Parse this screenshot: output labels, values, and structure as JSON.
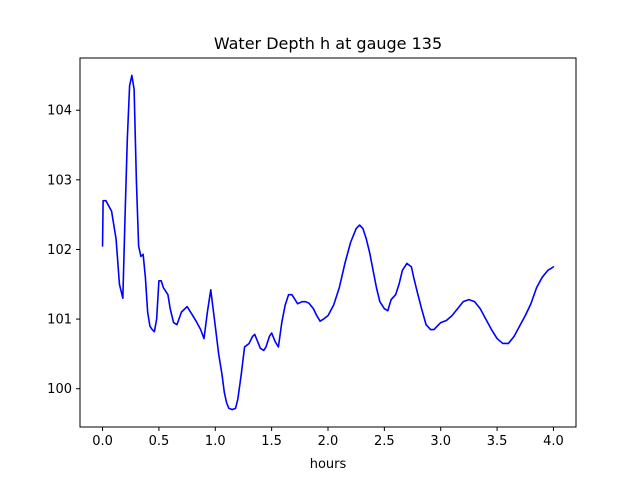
{
  "chart_data": {
    "type": "line",
    "title": "Water Depth h at gauge 135",
    "xlabel": "hours",
    "ylabel": "",
    "xlim": [
      -0.2,
      4.2
    ],
    "ylim": [
      99.45,
      104.75
    ],
    "xticks": [
      0.0,
      0.5,
      1.0,
      1.5,
      2.0,
      2.5,
      3.0,
      3.5,
      4.0
    ],
    "xtick_labels": [
      "0.0",
      "0.5",
      "1.0",
      "1.5",
      "2.0",
      "2.5",
      "3.0",
      "3.5",
      "4.0"
    ],
    "yticks": [
      100,
      101,
      102,
      103,
      104
    ],
    "ytick_labels": [
      "100",
      "101",
      "102",
      "103",
      "104"
    ],
    "grid": false,
    "series": [
      {
        "color": "#0000ff",
        "x": [
          0.0,
          0.005,
          0.03,
          0.08,
          0.12,
          0.15,
          0.18,
          0.2,
          0.22,
          0.24,
          0.26,
          0.28,
          0.3,
          0.32,
          0.34,
          0.36,
          0.38,
          0.4,
          0.42,
          0.44,
          0.46,
          0.48,
          0.5,
          0.52,
          0.54,
          0.56,
          0.58,
          0.6,
          0.63,
          0.66,
          0.7,
          0.75,
          0.8,
          0.83,
          0.87,
          0.9,
          0.93,
          0.96,
          1.0,
          1.03,
          1.06,
          1.08,
          1.1,
          1.12,
          1.15,
          1.18,
          1.2,
          1.23,
          1.26,
          1.3,
          1.33,
          1.35,
          1.37,
          1.4,
          1.43,
          1.45,
          1.48,
          1.5,
          1.53,
          1.56,
          1.59,
          1.62,
          1.65,
          1.68,
          1.7,
          1.73,
          1.77,
          1.8,
          1.83,
          1.87,
          1.9,
          1.93,
          1.96,
          2.0,
          2.05,
          2.1,
          2.15,
          2.2,
          2.25,
          2.28,
          2.31,
          2.34,
          2.37,
          2.4,
          2.43,
          2.46,
          2.5,
          2.53,
          2.56,
          2.6,
          2.63,
          2.66,
          2.7,
          2.74,
          2.76,
          2.79,
          2.83,
          2.87,
          2.91,
          2.94,
          2.97,
          3.0,
          3.05,
          3.1,
          3.15,
          3.2,
          3.25,
          3.3,
          3.35,
          3.4,
          3.45,
          3.5,
          3.55,
          3.6,
          3.65,
          3.7,
          3.75,
          3.8,
          3.85,
          3.9,
          3.95,
          3.98,
          4.0
        ],
        "y": [
          102.05,
          102.7,
          102.7,
          102.55,
          102.15,
          101.5,
          101.3,
          102.5,
          103.6,
          104.35,
          104.5,
          104.3,
          103.0,
          102.05,
          101.9,
          101.93,
          101.6,
          101.1,
          100.9,
          100.85,
          100.82,
          101.0,
          101.55,
          101.55,
          101.45,
          101.4,
          101.35,
          101.15,
          100.95,
          100.92,
          101.1,
          101.18,
          101.05,
          100.97,
          100.85,
          100.72,
          101.1,
          101.42,
          100.9,
          100.5,
          100.2,
          99.95,
          99.8,
          99.72,
          99.7,
          99.72,
          99.85,
          100.2,
          100.6,
          100.65,
          100.75,
          100.78,
          100.7,
          100.58,
          100.55,
          100.6,
          100.75,
          100.8,
          100.68,
          100.6,
          100.95,
          101.2,
          101.35,
          101.35,
          101.3,
          101.22,
          101.25,
          101.25,
          101.23,
          101.15,
          101.05,
          100.97,
          101.0,
          101.05,
          101.2,
          101.45,
          101.8,
          102.1,
          102.3,
          102.35,
          102.3,
          102.15,
          101.95,
          101.7,
          101.45,
          101.25,
          101.15,
          101.12,
          101.28,
          101.35,
          101.5,
          101.7,
          101.8,
          101.75,
          101.6,
          101.4,
          101.15,
          100.92,
          100.85,
          100.85,
          100.9,
          100.95,
          100.98,
          101.05,
          101.15,
          101.25,
          101.28,
          101.25,
          101.15,
          101.0,
          100.85,
          100.72,
          100.65,
          100.65,
          100.75,
          100.9,
          101.05,
          101.22,
          101.45,
          101.6,
          101.7,
          101.73,
          101.75
        ]
      }
    ]
  }
}
